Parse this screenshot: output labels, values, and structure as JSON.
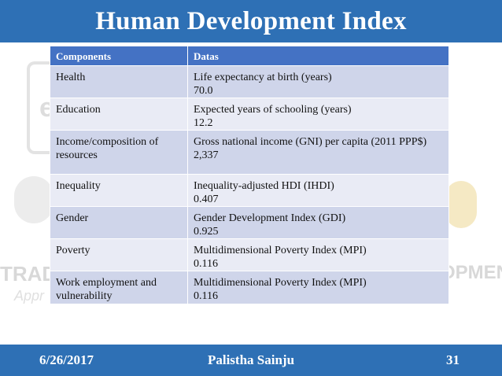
{
  "title": "Human Development Index",
  "watermark": {
    "left_text": "TRADIT",
    "left_sub": "Appr",
    "right_text": "OPMENT"
  },
  "table": {
    "headers": [
      "Components",
      "Datas"
    ],
    "rows": [
      {
        "component": "Health",
        "indicator": "Life expectancy at birth (years)",
        "value": "70.0"
      },
      {
        "component": "Education",
        "indicator": "Expected years of schooling (years)",
        "value": "12.2"
      },
      {
        "component": "Income/composition of resources",
        "indicator": "Gross national income (GNI) per capita (2011 PPP$)",
        "value": "2,337"
      },
      {
        "component": "Inequality",
        "indicator": "Inequality-adjusted HDI (IHDI)",
        "value": "0.407"
      },
      {
        "component": "Gender",
        "indicator": "Gender Development Index (GDI)",
        "value": "0.925"
      },
      {
        "component": "Poverty",
        "indicator": "Multidimensional Poverty Index (MPI)",
        "value": "0.116"
      },
      {
        "component": "Work employment and vulnerability",
        "indicator": "Multidimensional Poverty Index (MPI)",
        "value": "0.116"
      }
    ]
  },
  "footer": {
    "date": "6/26/2017",
    "author": "Palistha Sainju",
    "page": "31"
  },
  "colors": {
    "title_bar": "#2e70b5",
    "header_row": "#4472c4",
    "row_dark": "#cfd5ea",
    "row_light": "#e9ebf5"
  }
}
